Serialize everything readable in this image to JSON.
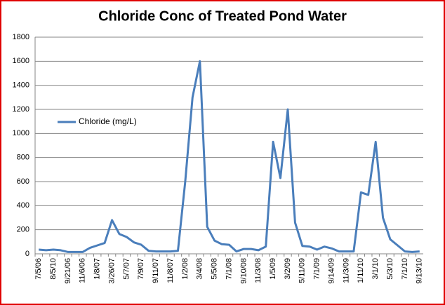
{
  "chart_data": {
    "type": "line",
    "title": "Chloride Conc of Treated Pond Water",
    "categories": [
      "7/5/06",
      null,
      "8/5/10",
      null,
      "9/21/06",
      null,
      "11/6/06",
      null,
      "1/8/07",
      null,
      "3/26/07",
      null,
      "5/7/07",
      null,
      "7/9/07",
      null,
      "9/11/07",
      null,
      "11/8/07",
      null,
      "1/2/08",
      null,
      "3/4/08",
      null,
      "5/5/08",
      null,
      "7/1/08",
      null,
      "9/10/08",
      null,
      "11/3/08",
      null,
      "1/5/09",
      null,
      "3/2/09",
      null,
      "5/11/09",
      null,
      "7/1/09",
      null,
      "9/14/09",
      null,
      "11/3/09",
      null,
      "1/11/10",
      null,
      "3/1/10",
      null,
      "5/3/10",
      null,
      "7/1/10",
      null,
      "9/13/10"
    ],
    "series": [
      {
        "name": "Chloride (mg/L)",
        "color": "#4a7ebb",
        "values": [
          35,
          30,
          35,
          30,
          15,
          15,
          15,
          50,
          70,
          90,
          280,
          165,
          140,
          95,
          75,
          25,
          20,
          20,
          20,
          25,
          600,
          1300,
          1600,
          225,
          110,
          80,
          75,
          20,
          40,
          40,
          30,
          60,
          930,
          630,
          1200,
          260,
          65,
          60,
          35,
          60,
          45,
          20,
          20,
          20,
          510,
          490,
          930,
          300,
          120,
          70,
          20,
          15,
          20
        ]
      }
    ],
    "ylim": [
      0,
      1800
    ],
    "yticks": [
      0,
      200,
      400,
      600,
      800,
      1000,
      1200,
      1400,
      1600,
      1800
    ],
    "grid": true,
    "legend": "left"
  }
}
